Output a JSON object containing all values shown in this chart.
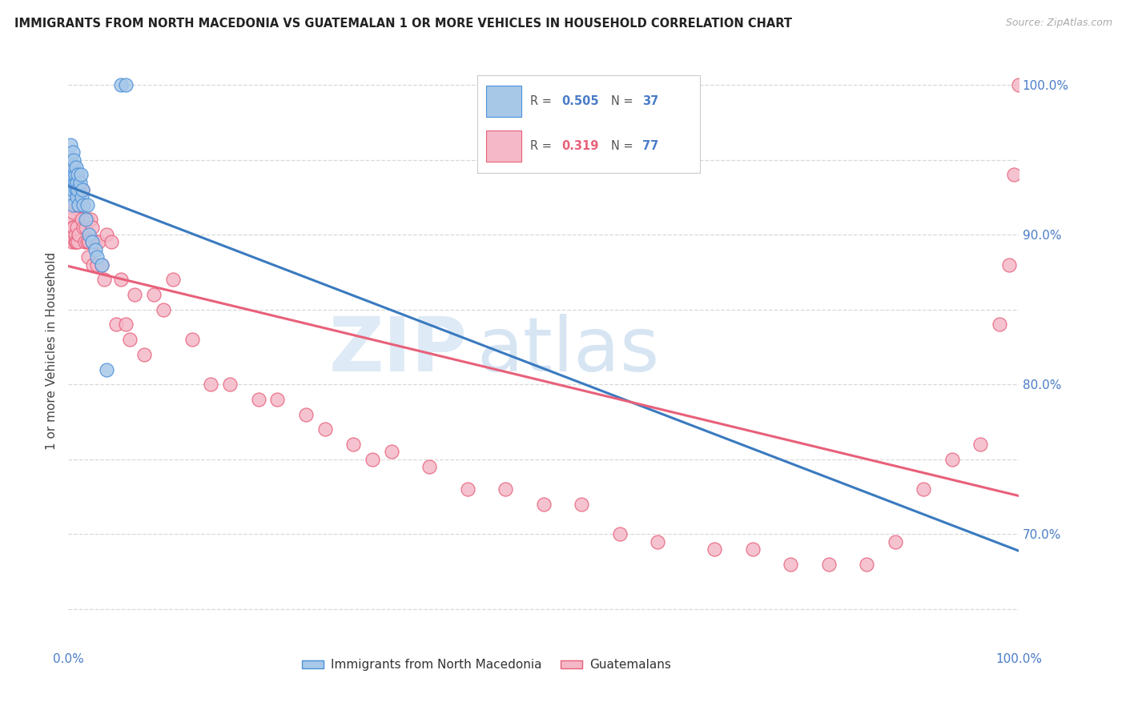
{
  "title": "IMMIGRANTS FROM NORTH MACEDONIA VS GUATEMALAN 1 OR MORE VEHICLES IN HOUSEHOLD CORRELATION CHART",
  "source": "Source: ZipAtlas.com",
  "ylabel": "1 or more Vehicles in Household",
  "watermark_zip": "ZIP",
  "watermark_atlas": "atlas",
  "blue_r": "0.505",
  "blue_n": "37",
  "pink_r": "0.319",
  "pink_n": "77",
  "blue_color": "#a8c8e8",
  "blue_edge_color": "#4a90d9",
  "pink_color": "#f4b8c8",
  "pink_edge_color": "#e8607a",
  "blue_line_color": "#3a7abf",
  "pink_line_color": "#e8607a",
  "background_color": "#ffffff",
  "grid_color": "#d8d8d8",
  "label_color": "#4a7cc7",
  "title_color": "#222222",
  "ylabel_color": "#444444",
  "source_color": "#aaaaaa",
  "blue_scatter_x": [
    0.001,
    0.002,
    0.002,
    0.003,
    0.003,
    0.004,
    0.004,
    0.005,
    0.005,
    0.005,
    0.005,
    0.006,
    0.006,
    0.007,
    0.007,
    0.008,
    0.008,
    0.009,
    0.009,
    0.01,
    0.01,
    0.011,
    0.012,
    0.013,
    0.014,
    0.015,
    0.016,
    0.018,
    0.02,
    0.022,
    0.025,
    0.028,
    0.03,
    0.035,
    0.04,
    0.055,
    0.06
  ],
  "blue_scatter_y": [
    0.94,
    0.96,
    0.95,
    0.935,
    0.945,
    0.93,
    0.925,
    0.94,
    0.93,
    0.92,
    0.955,
    0.945,
    0.95,
    0.935,
    0.94,
    0.93,
    0.945,
    0.935,
    0.925,
    0.94,
    0.93,
    0.92,
    0.935,
    0.94,
    0.925,
    0.93,
    0.92,
    0.91,
    0.92,
    0.9,
    0.895,
    0.89,
    0.885,
    0.88,
    0.81,
    1.0,
    1.0
  ],
  "pink_scatter_x": [
    0.002,
    0.003,
    0.004,
    0.005,
    0.005,
    0.006,
    0.007,
    0.007,
    0.008,
    0.008,
    0.009,
    0.01,
    0.01,
    0.011,
    0.012,
    0.012,
    0.013,
    0.014,
    0.015,
    0.015,
    0.016,
    0.017,
    0.018,
    0.02,
    0.02,
    0.021,
    0.022,
    0.023,
    0.025,
    0.025,
    0.026,
    0.028,
    0.03,
    0.032,
    0.035,
    0.038,
    0.04,
    0.045,
    0.05,
    0.055,
    0.06,
    0.065,
    0.07,
    0.08,
    0.09,
    0.1,
    0.11,
    0.13,
    0.15,
    0.17,
    0.2,
    0.22,
    0.25,
    0.27,
    0.3,
    0.32,
    0.34,
    0.38,
    0.42,
    0.46,
    0.5,
    0.54,
    0.58,
    0.62,
    0.68,
    0.72,
    0.76,
    0.8,
    0.84,
    0.87,
    0.9,
    0.93,
    0.96,
    0.98,
    0.99,
    0.995,
    1.0
  ],
  "pink_scatter_y": [
    0.91,
    0.92,
    0.895,
    0.905,
    0.915,
    0.905,
    0.895,
    0.9,
    0.895,
    0.92,
    0.905,
    0.895,
    0.92,
    0.9,
    0.92,
    0.93,
    0.92,
    0.91,
    0.92,
    0.93,
    0.905,
    0.895,
    0.905,
    0.895,
    0.91,
    0.885,
    0.895,
    0.91,
    0.895,
    0.905,
    0.88,
    0.895,
    0.88,
    0.895,
    0.88,
    0.87,
    0.9,
    0.895,
    0.84,
    0.87,
    0.84,
    0.83,
    0.86,
    0.82,
    0.86,
    0.85,
    0.87,
    0.83,
    0.8,
    0.8,
    0.79,
    0.79,
    0.78,
    0.77,
    0.76,
    0.75,
    0.755,
    0.745,
    0.73,
    0.73,
    0.72,
    0.72,
    0.7,
    0.695,
    0.69,
    0.69,
    0.68,
    0.68,
    0.68,
    0.695,
    0.73,
    0.75,
    0.76,
    0.84,
    0.88,
    0.94,
    1.0
  ],
  "xlim": [
    0.0,
    1.0
  ],
  "ylim": [
    0.625,
    1.02
  ],
  "ytick_vals": [
    0.65,
    0.7,
    0.75,
    0.8,
    0.85,
    0.9,
    0.95,
    1.0
  ],
  "ytick_labels": [
    "",
    "70.0%",
    "",
    "80.0%",
    "",
    "90.0%",
    "",
    "100.0%"
  ],
  "xtick_vals": [
    0.0,
    0.1,
    0.2,
    0.3,
    0.4,
    0.5,
    0.6,
    0.7,
    0.8,
    0.9,
    1.0
  ],
  "figsize": [
    14.06,
    8.92
  ],
  "dpi": 100
}
